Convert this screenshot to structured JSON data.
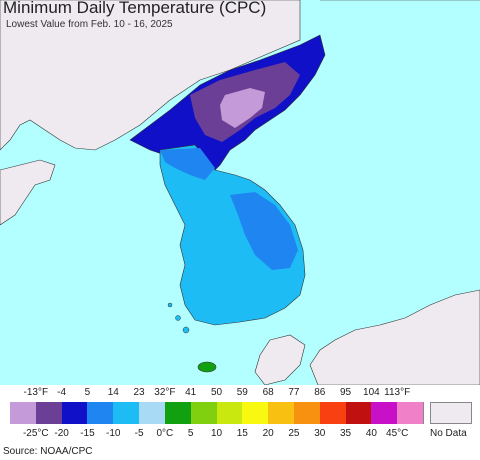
{
  "title": "Minimum Daily Temperature (CPC)",
  "subtitle": "Lowest Value from Feb. 10 - 16, 2025",
  "source": "Source: NOAA/CPC",
  "legend": {
    "fahrenheit_labels": [
      "-13°F",
      "-4",
      "5",
      "14",
      "23",
      "32°F",
      "41",
      "50",
      "59",
      "68",
      "77",
      "86",
      "95",
      "104",
      "113°F"
    ],
    "celsius_labels": [
      "-25°C",
      "-20",
      "-15",
      "-10",
      "-5",
      "0°C",
      "5",
      "10",
      "15",
      "20",
      "25",
      "30",
      "35",
      "40",
      "45°C"
    ],
    "colors": [
      "#c49ad8",
      "#6b3f96",
      "#1010c8",
      "#1f85f0",
      "#1ebcf5",
      "#a8daf5",
      "#10a010",
      "#80d010",
      "#c8e810",
      "#f8f810",
      "#f8c010",
      "#f89010",
      "#f84010",
      "#c01010",
      "#c810c8",
      "#f080c8"
    ],
    "no_data_label": "No Data",
    "no_data_color": "#eeeaf0"
  },
  "map": {
    "ocean_color": "#b3ffff",
    "land_no_data_color": "#eeeaf0"
  }
}
